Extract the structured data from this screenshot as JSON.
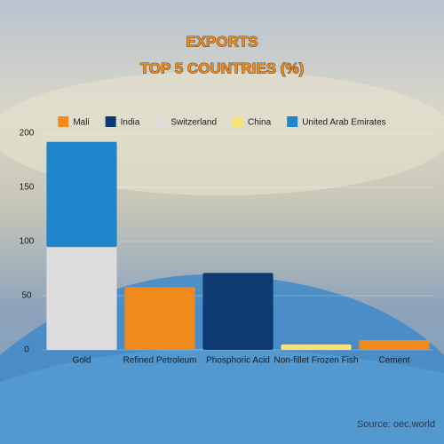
{
  "chart_data": {
    "type": "stacked_bar",
    "title": "EXPORTS",
    "subtitle": "TOP 5 COUNTRIES (%)",
    "categories": [
      "Gold",
      "Refined Petroleum",
      "Phosphoric Acid",
      "Non-fillet Frozen Fish",
      "Cement"
    ],
    "series": [
      {
        "name": "Mali",
        "color": "#f08a1c",
        "values": [
          null,
          58,
          null,
          null,
          9
        ]
      },
      {
        "name": "India",
        "color": "#0d3a70",
        "values": [
          null,
          null,
          71,
          null,
          null
        ]
      },
      {
        "name": "Switzerland",
        "color": "#dcdcdc",
        "values": [
          95,
          null,
          null,
          null,
          null
        ]
      },
      {
        "name": "China",
        "color": "#f9e27a",
        "values": [
          null,
          null,
          null,
          5,
          null
        ]
      },
      {
        "name": "United Arab Emirates",
        "color": "#1f86cc",
        "values": [
          97,
          null,
          null,
          null,
          null
        ]
      }
    ],
    "ylim": [
      0,
      200
    ],
    "yticks": [
      0,
      50,
      100,
      150,
      200
    ],
    "grid": true,
    "source": "Source: oec.world"
  }
}
